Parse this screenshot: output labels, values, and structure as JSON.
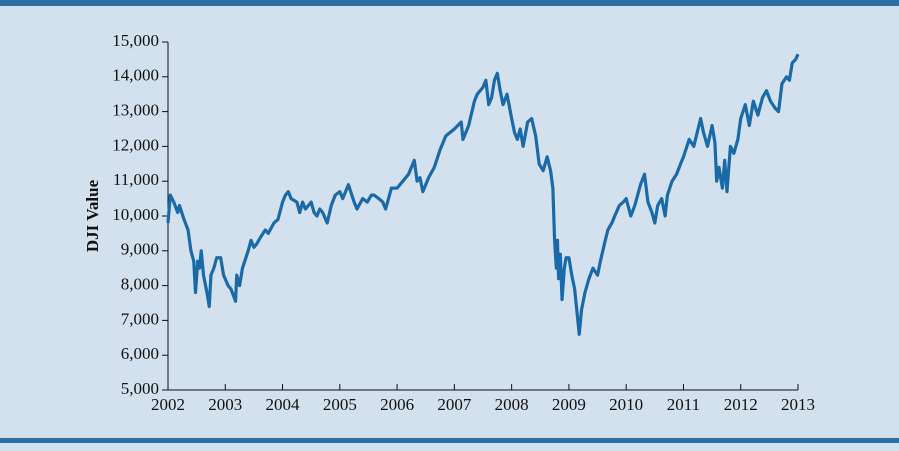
{
  "chart_data": {
    "type": "line",
    "y_label": "DJI Value",
    "x": [
      2002.0,
      2002.04,
      2002.1,
      2002.17,
      2002.2,
      2002.28,
      2002.35,
      2002.4,
      2002.45,
      2002.48,
      2002.52,
      2002.55,
      2002.58,
      2002.62,
      2002.68,
      2002.72,
      2002.75,
      2002.8,
      2002.85,
      2002.92,
      2002.97,
      2003.05,
      2003.1,
      2003.18,
      2003.2,
      2003.25,
      2003.3,
      2003.4,
      2003.45,
      2003.5,
      2003.55,
      2003.62,
      2003.7,
      2003.75,
      2003.85,
      2003.92,
      2004.0,
      2004.05,
      2004.1,
      2004.15,
      2004.25,
      2004.3,
      2004.35,
      2004.4,
      2004.5,
      2004.55,
      2004.6,
      2004.65,
      2004.7,
      2004.78,
      2004.85,
      2004.92,
      2005.0,
      2005.05,
      2005.15,
      2005.25,
      2005.3,
      2005.4,
      2005.48,
      2005.55,
      2005.6,
      2005.68,
      2005.75,
      2005.8,
      2005.9,
      2006.0,
      2006.1,
      2006.2,
      2006.3,
      2006.35,
      2006.4,
      2006.45,
      2006.55,
      2006.65,
      2006.75,
      2006.85,
      2007.0,
      2007.12,
      2007.15,
      2007.25,
      2007.35,
      2007.4,
      2007.45,
      2007.5,
      2007.55,
      2007.6,
      2007.65,
      2007.7,
      2007.75,
      2007.8,
      2007.85,
      2007.92,
      2008.0,
      2008.05,
      2008.1,
      2008.15,
      2008.2,
      2008.28,
      2008.35,
      2008.42,
      2008.48,
      2008.55,
      2008.62,
      2008.68,
      2008.72,
      2008.75,
      2008.78,
      2008.8,
      2008.82,
      2008.85,
      2008.88,
      2008.92,
      2008.95,
      2009.0,
      2009.05,
      2009.1,
      2009.15,
      2009.18,
      2009.22,
      2009.28,
      2009.35,
      2009.42,
      2009.5,
      2009.55,
      2009.62,
      2009.68,
      2009.75,
      2009.8,
      2009.88,
      2009.95,
      2010.0,
      2010.08,
      2010.15,
      2010.25,
      2010.32,
      2010.38,
      2010.45,
      2010.5,
      2010.55,
      2010.62,
      2010.68,
      2010.72,
      2010.8,
      2010.88,
      2010.95,
      2011.0,
      2011.1,
      2011.18,
      2011.3,
      2011.35,
      2011.42,
      2011.5,
      2011.55,
      2011.58,
      2011.62,
      2011.68,
      2011.72,
      2011.76,
      2011.82,
      2011.88,
      2011.95,
      2012.0,
      2012.08,
      2012.15,
      2012.22,
      2012.3,
      2012.38,
      2012.45,
      2012.52,
      2012.6,
      2012.66,
      2012.72,
      2012.8,
      2012.85,
      2012.9,
      2012.96,
      2013.0
    ],
    "values": [
      9800,
      10600,
      10400,
      10100,
      10300,
      9900,
      9600,
      9000,
      8700,
      7800,
      8700,
      8500,
      9000,
      8300,
      7800,
      7400,
      8300,
      8500,
      8800,
      8800,
      8300,
      8000,
      7900,
      7550,
      8300,
      8000,
      8500,
      9000,
      9300,
      9100,
      9200,
      9400,
      9600,
      9500,
      9800,
      9900,
      10400,
      10600,
      10700,
      10500,
      10400,
      10100,
      10400,
      10200,
      10400,
      10100,
      10000,
      10200,
      10100,
      9800,
      10300,
      10600,
      10700,
      10500,
      10900,
      10400,
      10200,
      10500,
      10400,
      10600,
      10600,
      10500,
      10400,
      10200,
      10800,
      10800,
      11000,
      11200,
      11600,
      11000,
      11100,
      10700,
      11100,
      11400,
      11900,
      12300,
      12500,
      12700,
      12200,
      12600,
      13300,
      13500,
      13600,
      13700,
      13900,
      13200,
      13400,
      13900,
      14100,
      13600,
      13200,
      13500,
      12800,
      12400,
      12200,
      12500,
      12000,
      12700,
      12800,
      12300,
      11500,
      11300,
      11700,
      11300,
      10800,
      9300,
      8500,
      9300,
      8200,
      8900,
      7600,
      8500,
      8800,
      8800,
      8300,
      7900,
      7100,
      6600,
      7300,
      7800,
      8200,
      8500,
      8300,
      8700,
      9200,
      9600,
      9800,
      10000,
      10300,
      10400,
      10500,
      10000,
      10300,
      10900,
      11200,
      10400,
      10100,
      9800,
      10300,
      10500,
      10000,
      10600,
      11000,
      11200,
      11500,
      11700,
      12200,
      12000,
      12800,
      12400,
      12000,
      12600,
      12100,
      11000,
      11400,
      10800,
      11600,
      10700,
      12000,
      11800,
      12200,
      12800,
      13200,
      12600,
      13300,
      12900,
      13400,
      13600,
      13300,
      13100,
      13000,
      13800,
      14000,
      13900,
      14400,
      14500,
      14650
    ],
    "color": "#1a6aa8",
    "xlim": [
      2002,
      2013
    ],
    "xticks": [
      2002,
      2003,
      2004,
      2005,
      2006,
      2007,
      2008,
      2009,
      2010,
      2011,
      2012,
      2013
    ],
    "ylim": [
      5000,
      15000
    ],
    "yticks": [
      {
        "value": 5000,
        "label": "5,000"
      },
      {
        "value": 6000,
        "label": "6,000"
      },
      {
        "value": 7000,
        "label": "7,000"
      },
      {
        "value": 8000,
        "label": "8,000"
      },
      {
        "value": 9000,
        "label": "9,000"
      },
      {
        "value": 10000,
        "label": "10,000"
      },
      {
        "value": 11000,
        "label": "11,000"
      },
      {
        "value": 12000,
        "label": "12,000"
      },
      {
        "value": 13000,
        "label": "13,000"
      },
      {
        "value": 14000,
        "label": "14,000"
      },
      {
        "value": 15000,
        "label": "15,000"
      }
    ]
  }
}
